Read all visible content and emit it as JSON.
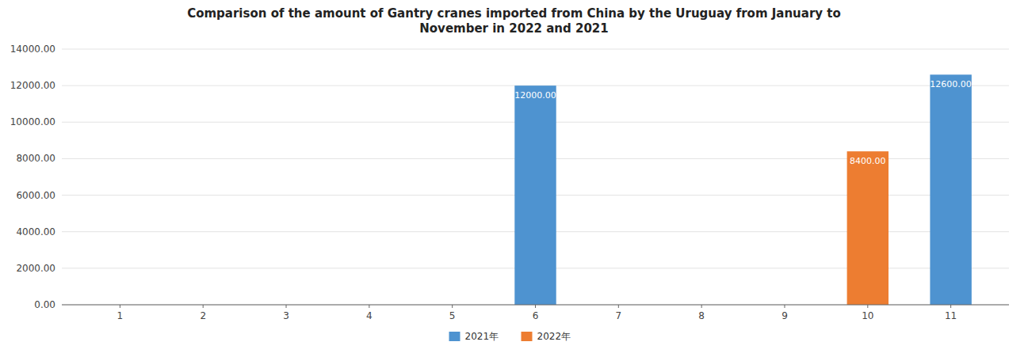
{
  "chart_data": {
    "type": "bar",
    "title": "Comparison of the amount of Gantry cranes imported from China by the Uruguay from January to\nNovember in 2022 and 2021",
    "x": [
      1,
      2,
      3,
      4,
      5,
      6,
      7,
      8,
      9,
      10,
      11
    ],
    "xlim": [
      0.3,
      11.7
    ],
    "xticks": [
      1,
      2,
      3,
      4,
      5,
      6,
      7,
      8,
      9,
      10,
      11
    ],
    "series": [
      {
        "name": "2021年",
        "color": "#4E93D0",
        "values": [
          0,
          0,
          0,
          0,
          0,
          12000,
          0,
          0,
          0,
          0,
          12600
        ],
        "value_labels": [
          null,
          null,
          null,
          null,
          null,
          "12000.00",
          null,
          null,
          null,
          null,
          "12600.00"
        ]
      },
      {
        "name": "2022年",
        "color": "#ED7D31",
        "values": [
          0,
          0,
          0,
          0,
          0,
          0,
          0,
          0,
          0,
          8400,
          0
        ],
        "value_labels": [
          null,
          null,
          null,
          null,
          null,
          null,
          null,
          null,
          null,
          "8400.00",
          null
        ]
      }
    ],
    "ylim": [
      0,
      14000
    ],
    "yticks": [
      {
        "value": 0,
        "label": "0.00"
      },
      {
        "value": 2000,
        "label": "2000.00"
      },
      {
        "value": 4000,
        "label": "4000.00"
      },
      {
        "value": 6000,
        "label": "6000.00"
      },
      {
        "value": 8000,
        "label": "8000.00"
      },
      {
        "value": 10000,
        "label": "10000.00"
      },
      {
        "value": 12000,
        "label": "12000.00"
      },
      {
        "value": 14000,
        "label": "14000.00"
      }
    ],
    "grid": true,
    "data_labels": true,
    "legend": "bottom"
  }
}
